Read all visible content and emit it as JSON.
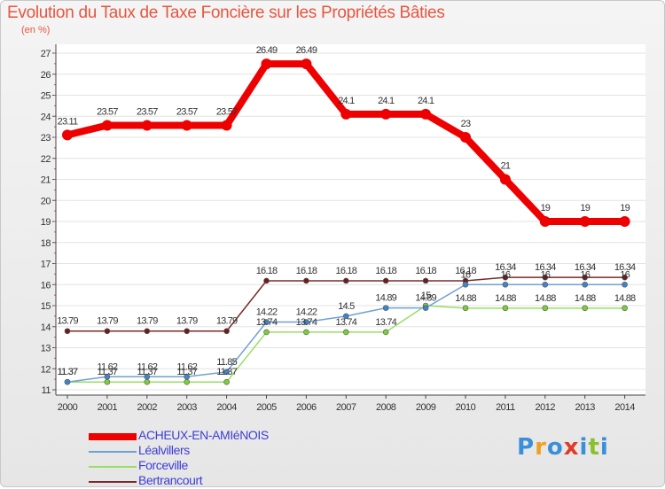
{
  "title": "Evolution du Taux de Taxe Foncière sur les Propriétés Bâties",
  "unit": "(en %)",
  "logo": {
    "text": "Proxiti",
    "letters": [
      "P",
      "r",
      "o",
      "x",
      "i",
      "t",
      "i"
    ],
    "colors": [
      "#3a8fd8",
      "#f0a020",
      "#3a8fd8",
      "#e23a2a",
      "#3a8fd8",
      "#88c030",
      "#3a8fd8"
    ]
  },
  "chart_data": {
    "type": "line",
    "title": "Evolution du Taux de Taxe Foncière sur les Propriétés Bâties",
    "ylabel": "(en %)",
    "xlabel": "",
    "ylim": [
      11,
      27
    ],
    "yticks": [
      "11",
      "12",
      "13",
      "14",
      "15",
      "16",
      "17",
      "18",
      "19",
      "20",
      "21",
      "22",
      "23",
      "24",
      "25",
      "26",
      "27"
    ],
    "x": [
      "2000",
      "2001",
      "2002",
      "2003",
      "2004",
      "2005",
      "2006",
      "2007",
      "2008",
      "2009",
      "2010",
      "2011",
      "2012",
      "2013",
      "2014"
    ],
    "series": [
      {
        "name": "ACHEUX-EN-AMIéNOIS",
        "color": "#ee0000",
        "values": [
          23.11,
          23.57,
          23.57,
          23.57,
          23.57,
          26.49,
          26.49,
          24.1,
          24.1,
          24.1,
          23,
          21,
          19,
          19,
          19
        ],
        "labels": [
          "23.11",
          "23.57",
          "23.57",
          "23.57",
          "23.57",
          "26.49",
          "26.49",
          "24.1",
          "24.1",
          "24.1",
          "23",
          "21",
          "19",
          "19",
          "19"
        ]
      },
      {
        "name": "Léalvillers",
        "color": "#6fa0d6",
        "values": [
          11.37,
          11.62,
          11.62,
          11.62,
          11.85,
          14.22,
          14.22,
          14.5,
          14.89,
          14.89,
          16,
          16,
          16,
          16,
          16
        ],
        "labels": [
          "11.37",
          "11.62",
          "11.62",
          "11.62",
          "11.85",
          "14.22",
          "14.22",
          "14.5",
          "14.89",
          "14.89",
          "16",
          "16",
          "16",
          "16",
          "16"
        ]
      },
      {
        "name": "Forceville",
        "color": "#99dd66",
        "values": [
          11.37,
          11.37,
          11.37,
          11.37,
          11.37,
          13.74,
          13.74,
          13.74,
          13.74,
          15,
          14.88,
          14.88,
          14.88,
          14.88,
          14.88
        ],
        "labels": [
          "11.37",
          "11.37",
          "11.37",
          "11.37",
          "11.37",
          "13.74",
          "13.74",
          "13.74",
          "13.74",
          "15",
          "14.88",
          "14.88",
          "14.88",
          "14.88",
          "14.88"
        ]
      },
      {
        "name": "Bertrancourt",
        "color": "#7a2b2b",
        "values": [
          13.79,
          13.79,
          13.79,
          13.79,
          13.79,
          16.18,
          16.18,
          16.18,
          16.18,
          16.18,
          16.18,
          16.34,
          16.34,
          16.34,
          16.34
        ],
        "labels": [
          "13.79",
          "13.79",
          "13.79",
          "13.79",
          "13.79",
          "16.18",
          "16.18",
          "16.18",
          "16.18",
          "16.18",
          "16.18",
          "16.34",
          "16.34",
          "16.34",
          "16.34"
        ]
      }
    ]
  }
}
